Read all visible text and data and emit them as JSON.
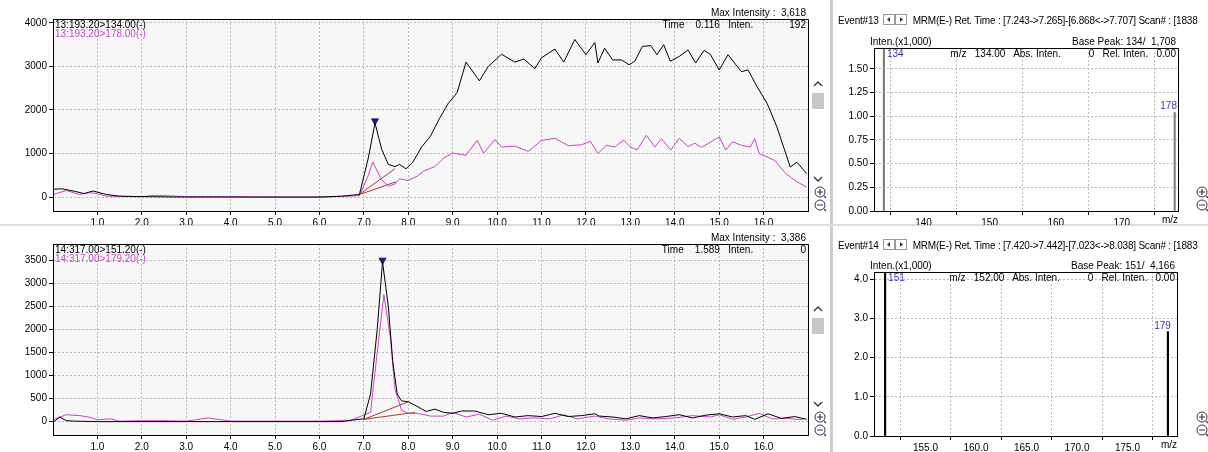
{
  "chart_data": [
    {
      "type": "line",
      "xlim": [
        0,
        17
      ],
      "ylim": [
        -320,
        4090
      ],
      "xticks": [
        {
          "value": 1,
          "label": "1.0"
        },
        {
          "value": 2,
          "label": "2.0"
        },
        {
          "value": 3,
          "label": "3.0"
        },
        {
          "value": 4,
          "label": "4.0"
        },
        {
          "value": 5,
          "label": "5.0"
        },
        {
          "value": 6,
          "label": "6.0"
        },
        {
          "value": 7,
          "label": "7.0"
        },
        {
          "value": 8,
          "label": "8.0"
        },
        {
          "value": 9,
          "label": "9.0"
        },
        {
          "value": 10,
          "label": "10.0"
        },
        {
          "value": 11,
          "label": "11.0"
        },
        {
          "value": 12,
          "label": "12.0"
        },
        {
          "value": 13,
          "label": "13.0"
        },
        {
          "value": 14,
          "label": "14.0"
        },
        {
          "value": 15,
          "label": "15.0"
        },
        {
          "value": 16,
          "label": "16.0"
        }
      ],
      "yticks": [
        0,
        1000,
        2000,
        3000,
        4000
      ],
      "grid": true,
      "legend": "top left",
      "annotations": [
        "Max Intensity :  3,618",
        "Time    0.116   Inten.             192"
      ],
      "series": [
        {
          "name": "13:193.20>134.00(-)",
          "color": "#000000",
          "x": [
            0,
            0.2,
            0.5,
            0.7,
            0.9,
            1.2,
            1.5,
            2,
            3,
            4,
            5,
            6,
            6.5,
            6.9,
            7.1,
            7.25,
            7.4,
            7.55,
            7.7,
            7.8,
            7.95,
            8.1,
            8.3,
            8.5,
            8.7,
            8.9,
            9.1,
            9.3,
            9.6,
            9.8,
            10.1,
            10.4,
            10.6,
            10.85,
            11.0,
            11.3,
            11.5,
            11.75,
            12.0,
            12.2,
            12.27,
            12.42,
            12.6,
            12.8,
            12.97,
            13.1,
            13.27,
            13.46,
            13.6,
            13.75,
            13.9,
            14.1,
            14.3,
            14.47,
            14.66,
            14.8,
            15.0,
            15.2,
            15.5,
            15.65,
            15.85,
            16.08,
            16.3,
            16.45,
            16.6,
            16.75,
            16.97
          ],
          "values": [
            180,
            190,
            130,
            80,
            140,
            60,
            20,
            10,
            0,
            0,
            0,
            0,
            20,
            60,
            900,
            1700,
            1100,
            750,
            700,
            750,
            650,
            800,
            1150,
            1400,
            1800,
            2150,
            2400,
            3100,
            2670,
            3000,
            3280,
            3100,
            3170,
            2950,
            3200,
            3400,
            3100,
            3620,
            3270,
            3550,
            3080,
            3420,
            3150,
            3150,
            3040,
            3120,
            3460,
            3480,
            3270,
            3500,
            3120,
            3230,
            3380,
            3080,
            3370,
            3280,
            2920,
            3270,
            2880,
            2920,
            2540,
            2150,
            1610,
            1150,
            690,
            800,
            540
          ]
        },
        {
          "name": "13:193.20>178.00(-)",
          "color": "#cc44cc",
          "x": [
            0,
            0.3,
            0.6,
            0.8,
            1.0,
            1.2,
            2,
            2.3,
            3,
            4,
            5,
            6,
            6.9,
            7.1,
            7.2,
            7.4,
            7.55,
            7.7,
            7.8,
            8.0,
            8.2,
            8.35,
            8.6,
            8.8,
            9.0,
            9.3,
            9.55,
            9.7,
            9.95,
            10.1,
            10.4,
            10.7,
            11.0,
            11.3,
            11.6,
            11.9,
            12.1,
            12.27,
            12.46,
            12.65,
            12.85,
            13.0,
            13.15,
            13.36,
            13.55,
            13.7,
            13.91,
            14.1,
            14.3,
            14.45,
            14.6,
            15.0,
            15.15,
            15.3,
            15.5,
            15.7,
            15.8,
            15.9,
            16.08,
            16.25,
            16.5,
            16.75,
            16.97
          ],
          "values": [
            60,
            150,
            60,
            100,
            80,
            20,
            10,
            40,
            10,
            10,
            0,
            0,
            30,
            500,
            800,
            400,
            250,
            300,
            420,
            380,
            480,
            600,
            700,
            900,
            1010,
            960,
            1300,
            1010,
            1320,
            1150,
            1170,
            1050,
            1300,
            1350,
            1180,
            1200,
            1280,
            1000,
            1190,
            1150,
            1310,
            1150,
            1080,
            1420,
            1150,
            1340,
            1080,
            1350,
            1160,
            1240,
            1140,
            1380,
            1080,
            1270,
            1190,
            1150,
            1340,
            1000,
            920,
            840,
            540,
            350,
            230
          ]
        },
        {
          "type": "line",
          "color": "#b03a2e",
          "x": [
            6.88,
            7.7
          ],
          "values": [
            50,
            650
          ]
        },
        {
          "type": "line",
          "color": "#b03a2e",
          "x": [
            6.88,
            7.72
          ],
          "values": [
            50,
            350
          ]
        },
        {
          "type": "scatter",
          "color": "#1a1a80",
          "marker": "triangle",
          "x": [
            7.25
          ],
          "values": [
            1750
          ]
        }
      ]
    },
    {
      "type": "bar",
      "title": "Event#13",
      "subtitle": "MRM(E-)   Ret. Time : [7.243->7.265]-[6.868<->7.707]   Scan# : [1838",
      "xlabel": "m/z",
      "ylabel": "Inten.(x1,000)",
      "xlim": [
        132.5,
        178.5
      ],
      "ylim": [
        0,
        1.72
      ],
      "xticks": [
        140,
        150,
        160,
        170
      ],
      "yticks": [
        {
          "value": 0,
          "label": "0.00"
        },
        {
          "value": 0.25,
          "label": "0.25"
        },
        {
          "value": 0.5,
          "label": "0.50"
        },
        {
          "value": 0.75,
          "label": "0.75"
        },
        {
          "value": 1,
          "label": "1.00"
        },
        {
          "value": 1.25,
          "label": "1.25"
        },
        {
          "value": 1.5,
          "label": "1.50"
        }
      ],
      "grid": true,
      "x": [
        134,
        178
      ],
      "values": [
        1.71,
        1.04
      ],
      "color": "#808080",
      "annotations": [
        "Base Peak: 134/  1,708",
        "m/z   134.00   Abs. Inten.          0   Rel. Inten.   0.00",
        {
          "text": "134",
          "x": 134,
          "y": 1.71
        },
        {
          "text": "178",
          "x": 178,
          "y": 1.04
        }
      ]
    },
    {
      "type": "line",
      "xlim": [
        0,
        17
      ],
      "ylim": [
        -290,
        3850
      ],
      "xticks": [
        {
          "value": 1,
          "label": "1.0"
        },
        {
          "value": 2,
          "label": "2.0"
        },
        {
          "value": 3,
          "label": "3.0"
        },
        {
          "value": 4,
          "label": "4.0"
        },
        {
          "value": 5,
          "label": "5.0"
        },
        {
          "value": 6,
          "label": "6.0"
        },
        {
          "value": 7,
          "label": "7.0"
        },
        {
          "value": 8,
          "label": "8.0"
        },
        {
          "value": 9,
          "label": "9.0"
        },
        {
          "value": 10,
          "label": "10.0"
        },
        {
          "value": 11,
          "label": "11.0"
        },
        {
          "value": 12,
          "label": "12.0"
        },
        {
          "value": 13,
          "label": "13.0"
        },
        {
          "value": 14,
          "label": "14.0"
        },
        {
          "value": 15,
          "label": "15.0"
        },
        {
          "value": 16,
          "label": "16.0"
        }
      ],
      "yticks": [
        0,
        500,
        1000,
        1500,
        2000,
        2500,
        3000,
        3500
      ],
      "grid": true,
      "legend": "top left",
      "annotations": [
        "Max Intensity :  3,386",
        "Time    1.589   Inten.                 0"
      ],
      "series": [
        {
          "name": "14:317.00>151.20(-)",
          "color": "#000000",
          "x": [
            0,
            0.05,
            0.15,
            0.3,
            0.5,
            1,
            2,
            3,
            4,
            5,
            6,
            6.5,
            6.8,
            7.0,
            7.15,
            7.3,
            7.42,
            7.55,
            7.65,
            7.75,
            7.85,
            8.0,
            8.2,
            8.4,
            8.6,
            8.8,
            9.0,
            9.2,
            9.5,
            9.8,
            10.1,
            10.4,
            10.7,
            11.0,
            11.3,
            11.6,
            11.9,
            12.2,
            12.3,
            12.6,
            12.9,
            13.2,
            13.5,
            13.8,
            14.1,
            14.4,
            14.7,
            15.0,
            15.3,
            15.6,
            15.8,
            16.1,
            16.4,
            16.7,
            16.97
          ],
          "values": [
            0,
            20,
            100,
            20,
            10,
            0,
            0,
            0,
            0,
            0,
            0,
            0,
            40,
            60,
            600,
            2000,
            3460,
            2500,
            1300,
            600,
            450,
            430,
            330,
            220,
            270,
            200,
            180,
            230,
            230,
            150,
            180,
            100,
            130,
            110,
            180,
            110,
            130,
            170,
            120,
            100,
            60,
            130,
            80,
            110,
            150,
            80,
            140,
            170,
            100,
            130,
            50,
            170,
            70,
            110,
            50
          ]
        },
        {
          "name": "14:317.00>179.20(-)",
          "color": "#cc44cc",
          "x": [
            0,
            0.3,
            0.6,
            0.8,
            1.0,
            1.3,
            1.5,
            2,
            2.5,
            3.0,
            3.5,
            4,
            5,
            6,
            6.7,
            7.15,
            7.3,
            7.45,
            7.6,
            7.7,
            7.85,
            8.0,
            8.2,
            8.5,
            8.8,
            9.0,
            9.3,
            9.6,
            9.9,
            10.2,
            10.5,
            10.8,
            11.2,
            11.5,
            11.8,
            12.2,
            12.5,
            12.9,
            13.2,
            13.6,
            14,
            14.4,
            14.8,
            15.0,
            15.3,
            15.6,
            15.9,
            16.2,
            16.5,
            16.9
          ],
          "values": [
            40,
            150,
            130,
            100,
            40,
            60,
            10,
            20,
            20,
            10,
            80,
            10,
            10,
            10,
            30,
            200,
            1500,
            2750,
            1800,
            700,
            250,
            180,
            180,
            120,
            120,
            200,
            100,
            160,
            30,
            120,
            60,
            80,
            60,
            150,
            60,
            120,
            60,
            30,
            80,
            60,
            80,
            130,
            100,
            150,
            50,
            100,
            180,
            60,
            70,
            40
          ]
        },
        {
          "type": "line",
          "color": "#b03a2e",
          "x": [
            7.0,
            8.0
          ],
          "values": [
            50,
            430
          ]
        },
        {
          "type": "line",
          "color": "#b03a2e",
          "x": [
            7.0,
            8.15
          ],
          "values": [
            50,
            200
          ]
        },
        {
          "type": "scatter",
          "color": "#1a1a80",
          "marker": "triangle",
          "x": [
            7.42
          ],
          "values": [
            3500
          ]
        }
      ]
    },
    {
      "type": "bar",
      "title": "Event#14",
      "subtitle": "MRM(E-)   Ret. Time : [7.420->7.442]-[7.023<->8.038]   Scan# : [1883",
      "xlabel": "m/z",
      "ylabel": "Inten.(x1,000)",
      "xlim": [
        149.9,
        179.9
      ],
      "ylim": [
        0,
        4.18
      ],
      "xticks": [
        {
          "value": 155,
          "label": "155.0"
        },
        {
          "value": 160,
          "label": "160.0"
        },
        {
          "value": 165,
          "label": "165.0"
        },
        {
          "value": 170,
          "label": "170.0"
        },
        {
          "value": 175,
          "label": "175.0"
        }
      ],
      "yticks": [
        {
          "value": 0,
          "label": "0.0"
        },
        {
          "value": 1,
          "label": "1.0"
        },
        {
          "value": 2,
          "label": "2.0"
        },
        {
          "value": 3,
          "label": "3.0"
        },
        {
          "value": 4,
          "label": "4.0"
        }
      ],
      "grid": true,
      "x": [
        151,
        179
      ],
      "values": [
        4.17,
        2.66
      ],
      "color": "#000000",
      "annotations": [
        "Base Peak: 151/  4,166",
        "m/z   152.00   Abs. Inten.          0   Rel. Inten.   0.00",
        {
          "text": "151",
          "x": 151,
          "y": 4.17
        },
        {
          "text": "179",
          "x": 179,
          "y": 2.66
        }
      ]
    }
  ]
}
